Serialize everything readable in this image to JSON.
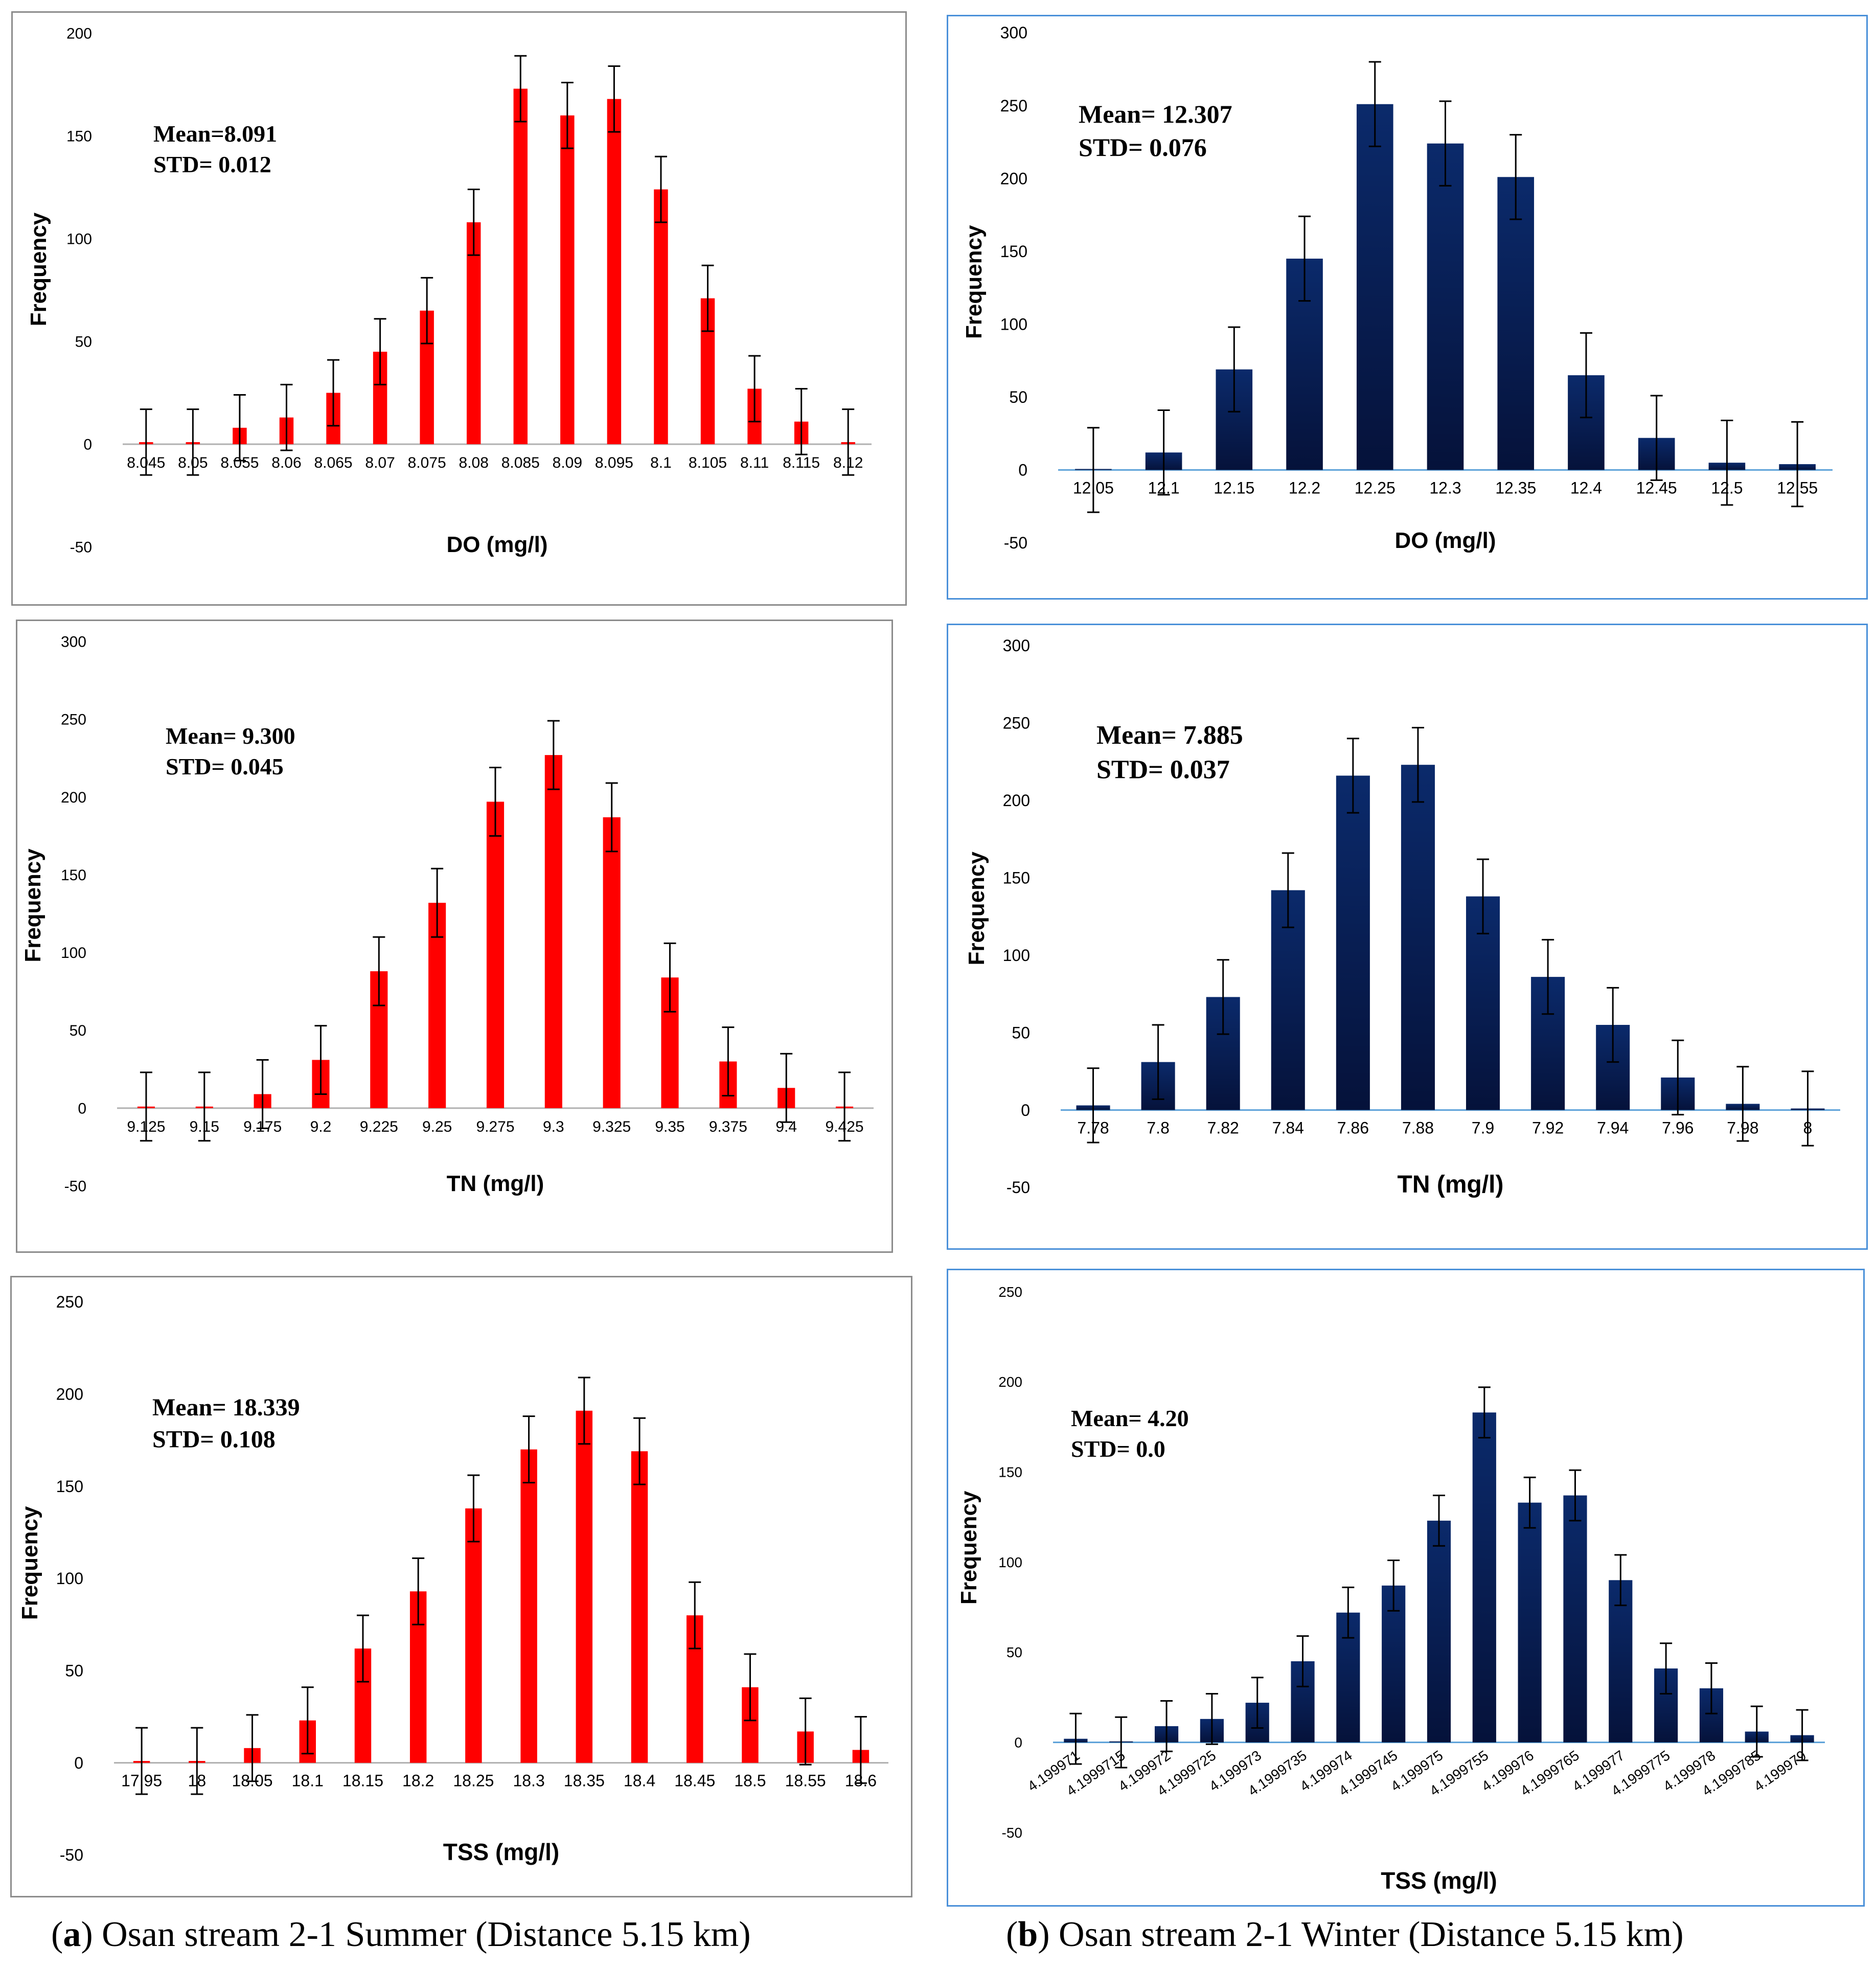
{
  "colors": {
    "summer_bar": "#ff0000",
    "winter_bar": "#0b2a6b",
    "winter_bar_dark": "#05123a",
    "winter_axis": "#5aa0d8",
    "summer_frame": "#8c8c8c",
    "winter_frame": "#4a90d9"
  },
  "captions": [
    {
      "tag": "a",
      "open": "(",
      "close": ") Osan stream 2-1 Summer (Distance 5.15 km)"
    },
    {
      "tag": "b",
      "open": "(",
      "close": ") Osan stream 2-1 Winter (Distance 5.15 km)"
    }
  ],
  "chart_data": [
    {
      "id": "summer-do",
      "type": "bar",
      "season": "summer",
      "title": "",
      "xlabel": "DO (mg/l)",
      "ylabel": "Frequency",
      "ylim": [
        -50,
        200
      ],
      "yticks": [
        "200",
        "150",
        "100",
        "50",
        "0",
        "-50"
      ],
      "categories": [
        "8.045",
        "8.05",
        "8.055",
        "8.06",
        "8.065",
        "8.07",
        "8.075",
        "8.08",
        "8.085",
        "8.09",
        "8.095",
        "8.1",
        "8.105",
        "8.11",
        "8.115",
        "8.12"
      ],
      "values": [
        1,
        1,
        8,
        13,
        25,
        45,
        65,
        108,
        173,
        160,
        168,
        124,
        71,
        27,
        11,
        1
      ],
      "error": 16,
      "stats": [
        "Mean=8.091",
        "STD= 0.012"
      ]
    },
    {
      "id": "winter-do",
      "type": "bar",
      "season": "winter",
      "title": "",
      "xlabel": "DO (mg/l)",
      "ylabel": "Frequency",
      "ylim": [
        -50,
        300
      ],
      "yticks": [
        "300",
        "250",
        "200",
        "150",
        "100",
        "50",
        "0",
        "-50"
      ],
      "categories": [
        "12.05",
        "12.1",
        "12.15",
        "12.2",
        "12.25",
        "12.3",
        "12.35",
        "12.4",
        "12.45",
        "12.5",
        "12.55"
      ],
      "values": [
        0,
        12,
        69,
        145,
        251,
        224,
        201,
        65,
        22,
        5,
        4
      ],
      "error": 29,
      "stats": [
        "Mean= 12.307",
        "STD= 0.076"
      ]
    },
    {
      "id": "summer-tn",
      "type": "bar",
      "season": "summer",
      "title": "",
      "xlabel": "TN (mg/l)",
      "ylabel": "Frequency",
      "ylim": [
        -50,
        300
      ],
      "yticks": [
        "300",
        "250",
        "200",
        "150",
        "100",
        "50",
        "0",
        "-50"
      ],
      "categories": [
        "9.125",
        "9.15",
        "9.175",
        "9.2",
        "9.225",
        "9.25",
        "9.275",
        "9.3",
        "9.325",
        "9.35",
        "9.375",
        "9.4",
        "9.425"
      ],
      "values": [
        1,
        1,
        9,
        31,
        88,
        132,
        197,
        227,
        187,
        84,
        30,
        13,
        1
      ],
      "error": 22,
      "stats": [
        "Mean= 9.300",
        "STD= 0.045"
      ]
    },
    {
      "id": "winter-tn",
      "type": "bar",
      "season": "winter",
      "title": "",
      "xlabel": "TN (mg/l)",
      "ylabel": "Frequency",
      "ylim": [
        -50,
        300
      ],
      "yticks": [
        "300",
        "250",
        "200",
        "150",
        "100",
        "50",
        "0",
        "-50"
      ],
      "categories": [
        "7.78",
        "7.8",
        "7.82",
        "7.84",
        "7.86",
        "7.88",
        "7.9",
        "7.92",
        "7.94",
        "7.96",
        "7.98",
        "8"
      ],
      "values": [
        3,
        31,
        73,
        142,
        216,
        223,
        138,
        86,
        55,
        21,
        4,
        1
      ],
      "error": 24,
      "stats": [
        "Mean= 7.885",
        "STD= 0.037"
      ]
    },
    {
      "id": "summer-tss",
      "type": "bar",
      "season": "summer",
      "title": "",
      "xlabel": "TSS (mg/l)",
      "ylabel": "Frequency",
      "ylim": [
        -50,
        250
      ],
      "yticks": [
        "250",
        "200",
        "150",
        "100",
        "50",
        "0",
        "-50"
      ],
      "categories": [
        "17.95",
        "18",
        "18.05",
        "18.1",
        "18.15",
        "18.2",
        "18.25",
        "18.3",
        "18.35",
        "18.4",
        "18.45",
        "18.5",
        "18.55",
        "18.6"
      ],
      "values": [
        1,
        1,
        8,
        23,
        62,
        93,
        138,
        170,
        191,
        169,
        80,
        41,
        17,
        7
      ],
      "error": 18,
      "stats": [
        "Mean= 18.339",
        "STD= 0.108"
      ]
    },
    {
      "id": "winter-tss",
      "type": "bar",
      "season": "winter",
      "title": "",
      "xlabel": "TSS (mg/l)",
      "ylabel": "Frequency",
      "ylim": [
        -50,
        250
      ],
      "yticks": [
        "250",
        "200",
        "150",
        "100",
        "50",
        "0",
        "-50"
      ],
      "categories": [
        "4.199971",
        "4.1999715",
        "4.199972",
        "4.1999725",
        "4.199973",
        "4.1999735",
        "4.199974",
        "4.1999745",
        "4.199975",
        "4.1999755",
        "4.199976",
        "4.1999765",
        "4.199977",
        "4.1999775",
        "4.199978",
        "4.1999785",
        "4.199979"
      ],
      "values": [
        2,
        0,
        9,
        13,
        22,
        45,
        72,
        87,
        123,
        183,
        133,
        137,
        90,
        41,
        30,
        6,
        4
      ],
      "error": 14,
      "stats": [
        "Mean= 4.20",
        "STD= 0.0"
      ]
    }
  ]
}
